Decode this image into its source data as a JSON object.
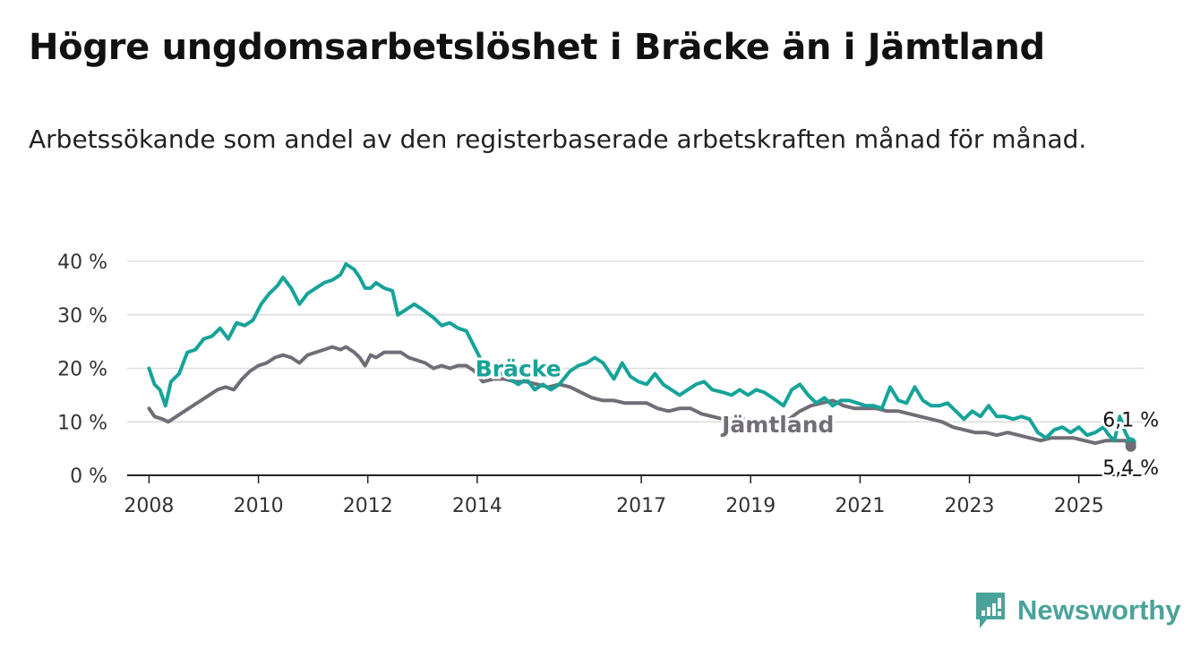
{
  "title": "Högre ungdomsarbetslöshet i Bräcke än i Jämtland",
  "subtitle": "Arbetssökande som andel av den registerbaserade arbetskraften månad för månad.",
  "brand": {
    "name": "Newsworthy",
    "color": "#4aa39a",
    "icon": "chart-bubble-icon"
  },
  "colors": {
    "bracke": "#16a399",
    "jamtland": "#716d76",
    "grid": "#dddddd",
    "axis": "#222222",
    "text": "#333333"
  },
  "chart_data": {
    "type": "line",
    "ylim": [
      0,
      40
    ],
    "xlim": [
      2007.6,
      2026.2
    ],
    "y_ticks": [
      0,
      10,
      20,
      30,
      40
    ],
    "y_tick_labels": [
      "0 %",
      "10 %",
      "20 %",
      "30 %",
      "40 %"
    ],
    "x_ticks": [
      2008,
      2010,
      2012,
      2014,
      2017,
      2019,
      2021,
      2023,
      2025
    ],
    "x_tick_labels": [
      "2008",
      "2010",
      "2012",
      "2014",
      "2017",
      "2019",
      "2021",
      "2023",
      "2025"
    ],
    "series": [
      {
        "name": "Bräcke",
        "end_label": "6,1 %",
        "points": [
          [
            2008.0,
            20
          ],
          [
            2008.1,
            17
          ],
          [
            2008.2,
            16
          ],
          [
            2008.3,
            13
          ],
          [
            2008.4,
            17.5
          ],
          [
            2008.55,
            19
          ],
          [
            2008.7,
            23
          ],
          [
            2008.85,
            23.5
          ],
          [
            2009.0,
            25.5
          ],
          [
            2009.15,
            26
          ],
          [
            2009.3,
            27.5
          ],
          [
            2009.45,
            25.5
          ],
          [
            2009.6,
            28.5
          ],
          [
            2009.75,
            28
          ],
          [
            2009.9,
            29
          ],
          [
            2010.05,
            32
          ],
          [
            2010.2,
            34
          ],
          [
            2010.35,
            35.5
          ],
          [
            2010.45,
            37
          ],
          [
            2010.6,
            35
          ],
          [
            2010.75,
            32
          ],
          [
            2010.9,
            34
          ],
          [
            2011.05,
            35
          ],
          [
            2011.2,
            36
          ],
          [
            2011.35,
            36.5
          ],
          [
            2011.5,
            37.5
          ],
          [
            2011.6,
            39.5
          ],
          [
            2011.75,
            38.5
          ],
          [
            2011.85,
            37
          ],
          [
            2011.95,
            35
          ],
          [
            2012.05,
            35
          ],
          [
            2012.15,
            36
          ],
          [
            2012.3,
            35
          ],
          [
            2012.45,
            34.5
          ],
          [
            2012.55,
            30
          ],
          [
            2012.7,
            31
          ],
          [
            2012.85,
            32
          ],
          [
            2013.0,
            31
          ],
          [
            2013.2,
            29.5
          ],
          [
            2013.35,
            28
          ],
          [
            2013.5,
            28.5
          ],
          [
            2013.65,
            27.5
          ],
          [
            2013.8,
            27
          ],
          [
            2013.95,
            24
          ],
          [
            2014.1,
            21
          ],
          [
            2014.25,
            20
          ],
          [
            2014.45,
            19
          ],
          [
            2014.6,
            18
          ],
          [
            2014.75,
            17
          ],
          [
            2014.9,
            18
          ],
          [
            2015.05,
            16
          ],
          [
            2015.2,
            17
          ],
          [
            2015.35,
            16
          ],
          [
            2015.5,
            17
          ],
          [
            2015.7,
            19.5
          ],
          [
            2015.85,
            20.5
          ],
          [
            2016.0,
            21
          ],
          [
            2016.15,
            22
          ],
          [
            2016.3,
            21
          ],
          [
            2016.5,
            18
          ],
          [
            2016.65,
            21
          ],
          [
            2016.8,
            18.5
          ],
          [
            2016.95,
            17.5
          ],
          [
            2017.1,
            17
          ],
          [
            2017.25,
            19
          ],
          [
            2017.4,
            17
          ],
          [
            2017.55,
            16
          ],
          [
            2017.7,
            15
          ],
          [
            2017.85,
            16
          ],
          [
            2018.0,
            17
          ],
          [
            2018.15,
            17.5
          ],
          [
            2018.3,
            16
          ],
          [
            2018.5,
            15.5
          ],
          [
            2018.65,
            15
          ],
          [
            2018.8,
            16
          ],
          [
            2018.95,
            15
          ],
          [
            2019.1,
            16
          ],
          [
            2019.25,
            15.5
          ],
          [
            2019.4,
            14.5
          ],
          [
            2019.6,
            13
          ],
          [
            2019.75,
            16
          ],
          [
            2019.9,
            17
          ],
          [
            2020.05,
            15
          ],
          [
            2020.2,
            13.5
          ],
          [
            2020.35,
            14.5
          ],
          [
            2020.5,
            13
          ],
          [
            2020.65,
            14
          ],
          [
            2020.8,
            14
          ],
          [
            2020.95,
            13.5
          ],
          [
            2021.1,
            13
          ],
          [
            2021.25,
            13
          ],
          [
            2021.4,
            12.5
          ],
          [
            2021.55,
            16.5
          ],
          [
            2021.7,
            14
          ],
          [
            2021.85,
            13.5
          ],
          [
            2022.0,
            16.5
          ],
          [
            2022.15,
            14
          ],
          [
            2022.3,
            13
          ],
          [
            2022.45,
            13
          ],
          [
            2022.6,
            13.5
          ],
          [
            2022.75,
            12
          ],
          [
            2022.9,
            10.5
          ],
          [
            2023.05,
            12
          ],
          [
            2023.2,
            11
          ],
          [
            2023.35,
            13
          ],
          [
            2023.5,
            11
          ],
          [
            2023.65,
            11
          ],
          [
            2023.8,
            10.5
          ],
          [
            2023.95,
            11
          ],
          [
            2024.1,
            10.5
          ],
          [
            2024.25,
            8
          ],
          [
            2024.4,
            7
          ],
          [
            2024.55,
            8.5
          ],
          [
            2024.7,
            9
          ],
          [
            2024.85,
            8
          ],
          [
            2025.0,
            9
          ],
          [
            2025.15,
            7.5
          ],
          [
            2025.3,
            8
          ],
          [
            2025.45,
            9
          ],
          [
            2025.55,
            7.5
          ],
          [
            2025.65,
            6.5
          ],
          [
            2025.75,
            11
          ],
          [
            2025.85,
            8
          ],
          [
            2025.95,
            6.1
          ]
        ]
      },
      {
        "name": "Jämtland",
        "end_label": "5,4 %",
        "points": [
          [
            2008.0,
            12.5
          ],
          [
            2008.1,
            11
          ],
          [
            2008.25,
            10.5
          ],
          [
            2008.35,
            10
          ],
          [
            2008.5,
            11
          ],
          [
            2008.65,
            12
          ],
          [
            2008.8,
            13
          ],
          [
            2008.95,
            14
          ],
          [
            2009.1,
            15
          ],
          [
            2009.25,
            16
          ],
          [
            2009.4,
            16.5
          ],
          [
            2009.55,
            16
          ],
          [
            2009.7,
            18
          ],
          [
            2009.85,
            19.5
          ],
          [
            2010.0,
            20.5
          ],
          [
            2010.15,
            21
          ],
          [
            2010.3,
            22
          ],
          [
            2010.45,
            22.5
          ],
          [
            2010.6,
            22
          ],
          [
            2010.75,
            21
          ],
          [
            2010.9,
            22.5
          ],
          [
            2011.05,
            23
          ],
          [
            2011.2,
            23.5
          ],
          [
            2011.35,
            24
          ],
          [
            2011.5,
            23.5
          ],
          [
            2011.6,
            24
          ],
          [
            2011.75,
            23
          ],
          [
            2011.85,
            22
          ],
          [
            2011.95,
            20.5
          ],
          [
            2012.05,
            22.5
          ],
          [
            2012.15,
            22
          ],
          [
            2012.3,
            23
          ],
          [
            2012.45,
            23
          ],
          [
            2012.6,
            23
          ],
          [
            2012.75,
            22
          ],
          [
            2012.9,
            21.5
          ],
          [
            2013.05,
            21
          ],
          [
            2013.2,
            20
          ],
          [
            2013.35,
            20.5
          ],
          [
            2013.5,
            20
          ],
          [
            2013.65,
            20.5
          ],
          [
            2013.8,
            20.5
          ],
          [
            2013.95,
            19.5
          ],
          [
            2014.1,
            17.5
          ],
          [
            2014.3,
            18
          ],
          [
            2014.5,
            18
          ],
          [
            2014.7,
            17.5
          ],
          [
            2014.9,
            17.5
          ],
          [
            2015.1,
            17
          ],
          [
            2015.3,
            16.5
          ],
          [
            2015.5,
            17
          ],
          [
            2015.7,
            16.5
          ],
          [
            2015.9,
            15.5
          ],
          [
            2016.1,
            14.5
          ],
          [
            2016.3,
            14
          ],
          [
            2016.5,
            14
          ],
          [
            2016.7,
            13.5
          ],
          [
            2016.9,
            13.5
          ],
          [
            2017.1,
            13.5
          ],
          [
            2017.3,
            12.5
          ],
          [
            2017.5,
            12
          ],
          [
            2017.7,
            12.5
          ],
          [
            2017.9,
            12.5
          ],
          [
            2018.1,
            11.5
          ],
          [
            2018.3,
            11
          ],
          [
            2018.5,
            10.5
          ],
          [
            2018.7,
            10.5
          ],
          [
            2018.9,
            10.5
          ],
          [
            2019.1,
            10
          ],
          [
            2019.3,
            10
          ],
          [
            2019.5,
            9.5
          ],
          [
            2019.7,
            10.5
          ],
          [
            2019.9,
            12
          ],
          [
            2020.1,
            13
          ],
          [
            2020.3,
            13.5
          ],
          [
            2020.5,
            14
          ],
          [
            2020.7,
            13
          ],
          [
            2020.9,
            12.5
          ],
          [
            2021.1,
            12.5
          ],
          [
            2021.3,
            12.5
          ],
          [
            2021.5,
            12
          ],
          [
            2021.7,
            12
          ],
          [
            2021.9,
            11.5
          ],
          [
            2022.1,
            11
          ],
          [
            2022.3,
            10.5
          ],
          [
            2022.5,
            10
          ],
          [
            2022.7,
            9
          ],
          [
            2022.9,
            8.5
          ],
          [
            2023.1,
            8
          ],
          [
            2023.3,
            8
          ],
          [
            2023.5,
            7.5
          ],
          [
            2023.7,
            8
          ],
          [
            2023.9,
            7.5
          ],
          [
            2024.1,
            7
          ],
          [
            2024.3,
            6.5
          ],
          [
            2024.5,
            7
          ],
          [
            2024.7,
            7
          ],
          [
            2024.9,
            7
          ],
          [
            2025.1,
            6.5
          ],
          [
            2025.3,
            6
          ],
          [
            2025.5,
            6.5
          ],
          [
            2025.7,
            6.5
          ],
          [
            2025.85,
            6.5
          ],
          [
            2025.95,
            5.4
          ]
        ]
      }
    ],
    "inline_labels": [
      {
        "series": "Bräcke",
        "text": "Bräcke",
        "x": 2014.75,
        "y": 20
      },
      {
        "series": "Jämtland",
        "text": "Jämtland",
        "x": 2019.5,
        "y": 9.5
      }
    ]
  }
}
